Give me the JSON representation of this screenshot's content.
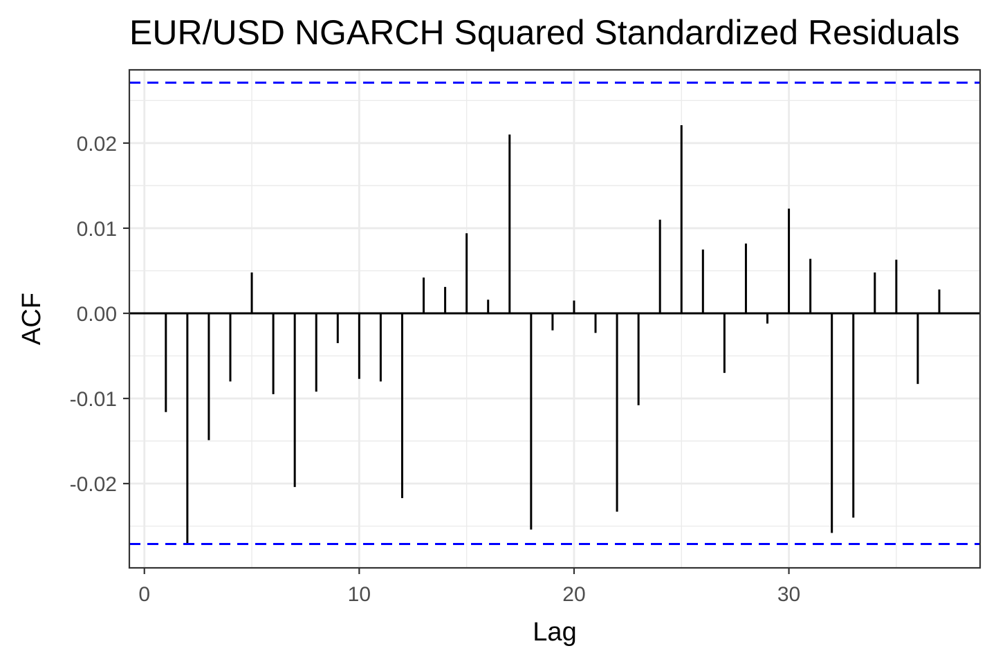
{
  "chart_data": {
    "type": "bar",
    "subtype": "acf-stem",
    "title": "EUR/USD NGARCH Squared Standardized Residuals",
    "xlabel": "Lag",
    "ylabel": "ACF",
    "xlim": [
      -0.7,
      38.9
    ],
    "ylim": [
      -0.0299,
      0.0286
    ],
    "x_ticks": [
      0,
      10,
      20,
      30
    ],
    "x_tick_labels": [
      "0",
      "10",
      "20",
      "30"
    ],
    "y_ticks": [
      -0.02,
      -0.01,
      0.0,
      0.01,
      0.02
    ],
    "y_tick_labels": [
      "-0.02",
      "-0.01",
      "0.00",
      "0.01",
      "0.02"
    ],
    "grid": true,
    "confidence_bound": 0.0271,
    "confidence_color": "#0000ff",
    "stem_color": "#000000",
    "lags": [
      1,
      2,
      3,
      4,
      5,
      6,
      7,
      8,
      9,
      10,
      11,
      12,
      13,
      14,
      15,
      16,
      17,
      18,
      19,
      20,
      21,
      22,
      23,
      24,
      25,
      26,
      27,
      28,
      29,
      30,
      31,
      32,
      33,
      34,
      35,
      36,
      37
    ],
    "values": [
      -0.0116,
      -0.0272,
      -0.0149,
      -0.008,
      0.0048,
      -0.0095,
      -0.0204,
      -0.0092,
      -0.0035,
      -0.0077,
      -0.008,
      -0.0217,
      0.0042,
      0.0031,
      0.0094,
      0.0016,
      0.021,
      -0.0254,
      -0.002,
      0.0015,
      -0.0023,
      -0.0233,
      -0.0108,
      0.011,
      0.0221,
      0.0075,
      -0.007,
      0.0082,
      -0.0012,
      0.0123,
      0.0064,
      -0.0258,
      -0.024,
      0.0048,
      0.0063,
      -0.0083,
      0.0028
    ]
  }
}
